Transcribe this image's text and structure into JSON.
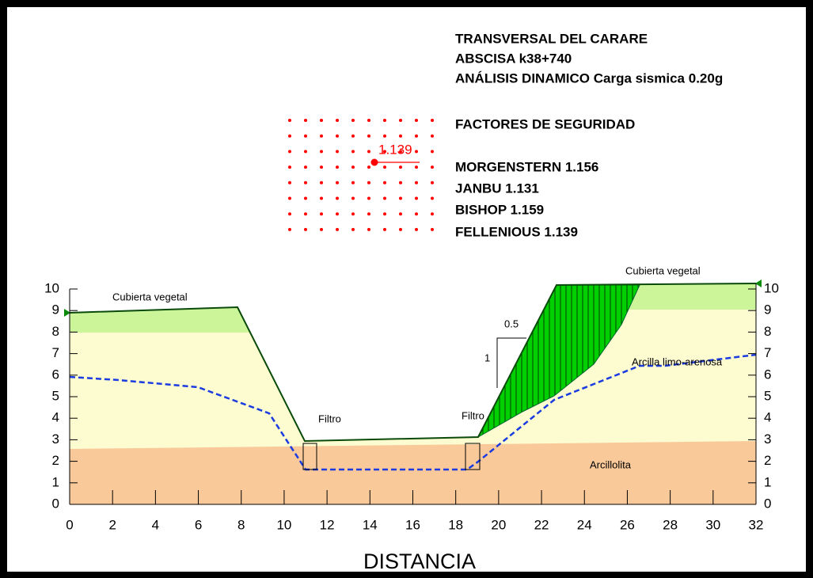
{
  "header": {
    "lines": [
      "TRANSVERSAL DEL CARARE",
      "ABSCISA k38+740",
      "ANÁLISIS DINAMICO Carga sismica 0.20g"
    ]
  },
  "factors": {
    "title": "FACTORES DE SEGURIDAD",
    "items": [
      "MORGENSTERN 1.156",
      "JANBU  1.131",
      "BISHOP  1.159",
      "FELLENIOUS  1.139"
    ]
  },
  "grid_label": "1.139",
  "section": {
    "layers": [
      "Cubierta vegetal",
      "Filtro",
      "Filtro",
      "Cubierta vegetal",
      "Arcilla limo-arenosa",
      "Arcillolita"
    ],
    "slope_labels": [
      "0.5",
      "1"
    ],
    "xlabel": "DISTANCIA",
    "xlim": [
      0,
      32
    ],
    "ylim": [
      0,
      10
    ],
    "xticks": [
      0,
      2,
      4,
      6,
      8,
      10,
      12,
      14,
      16,
      18,
      20,
      22,
      24,
      26,
      28,
      30,
      32
    ],
    "yticks": [
      0,
      1,
      2,
      3,
      4,
      5,
      6,
      7,
      8,
      9,
      10
    ],
    "y2ticks": [
      0,
      1,
      2,
      3,
      4,
      5,
      6,
      7,
      8,
      9,
      10
    ]
  }
}
